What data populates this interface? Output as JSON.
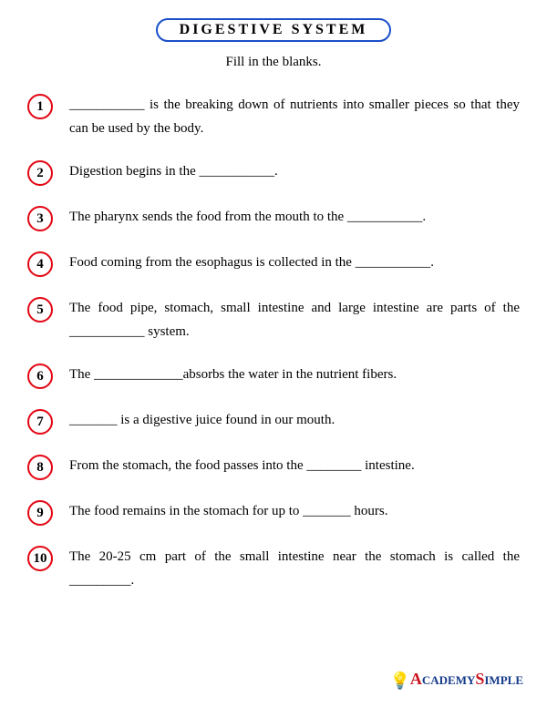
{
  "title": "DIGESTIVE SYSTEM",
  "subtitle": "Fill in the blanks.",
  "title_border_color": "#1a4fc9",
  "circle_border_color": "#e30613",
  "background_color": "#ffffff",
  "text_color": "#000000",
  "body_fontsize": 15,
  "title_fontsize": 16,
  "questions": [
    {
      "n": "1",
      "text": "___________ is the breaking down of nutrients into smaller pieces so that they can be used by the body."
    },
    {
      "n": "2",
      "text": "Digestion begins in the ___________."
    },
    {
      "n": "3",
      "text": "The pharynx sends the food from the mouth to the ___________."
    },
    {
      "n": "4",
      "text": "Food coming from the esophagus is collected in the ___________."
    },
    {
      "n": "5",
      "text": "The food pipe, stomach, small intestine and large intestine are parts of the ___________ system."
    },
    {
      "n": "6",
      "text": "The _____________absorbs the water in the nutrient fibers."
    },
    {
      "n": "7",
      "text": "_______ is a digestive juice found in our mouth."
    },
    {
      "n": "8",
      "text": "From the stomach, the food passes into the ________ intestine."
    },
    {
      "n": "9",
      "text": "The food remains in the stomach for up to _______ hours."
    },
    {
      "n": "10",
      "text": "The 20-25 cm part of the small intestine near the stomach  is called the _________."
    }
  ],
  "logo": {
    "bulb": "💡",
    "letter_a": "A",
    "cademy": "cademy",
    "letter_s": "S",
    "imple": "imple",
    "color_red": "#c9151e",
    "color_blue": "#153a8a",
    "color_bulb": "#f7a600"
  }
}
